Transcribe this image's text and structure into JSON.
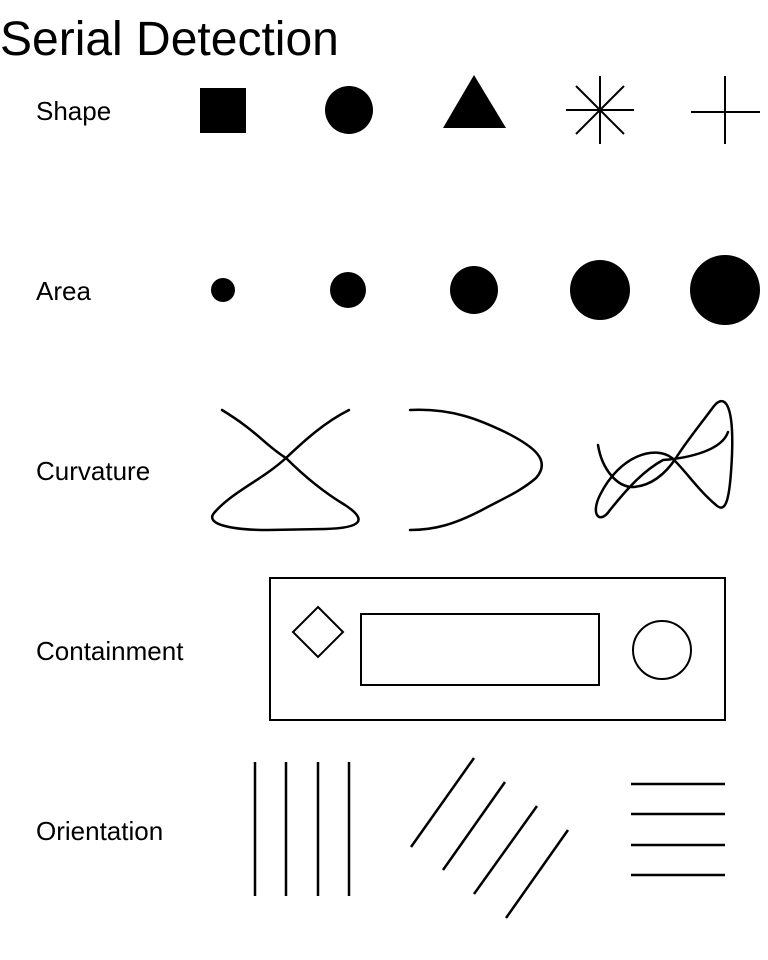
{
  "title": "Serial Detection",
  "rows": [
    {
      "label": "Shape",
      "items": [
        "square-icon",
        "circle-icon",
        "triangle-icon",
        "asterisk-icon",
        "plus-icon"
      ]
    },
    {
      "label": "Area",
      "items": [
        "dot-smallest",
        "dot-small",
        "dot-medium",
        "dot-large",
        "dot-largest"
      ]
    },
    {
      "label": "Curvature",
      "items": [
        "crossing-curve",
        "arrow-curve",
        "looping-curve"
      ]
    },
    {
      "label": "Containment",
      "items": [
        "outer-rectangle",
        "diamond-icon",
        "inner-rectangle",
        "circle-outline-icon"
      ]
    },
    {
      "label": "Orientation",
      "items": [
        "vertical-lines",
        "diagonal-lines",
        "horizontal-lines"
      ]
    }
  ],
  "colors": {
    "ink": "#000000",
    "background": "#ffffff"
  }
}
